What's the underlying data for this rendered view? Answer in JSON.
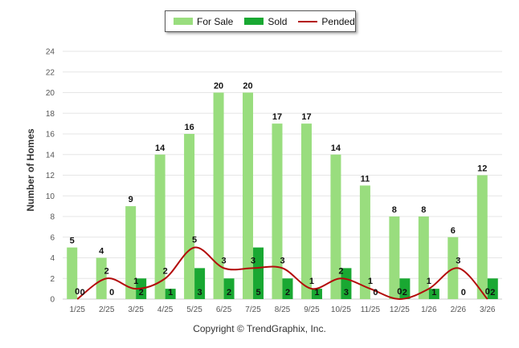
{
  "legend": {
    "for_sale_label": "For Sale",
    "sold_label": "Sold",
    "pended_label": "Pended"
  },
  "copyright": "Copyright © TrendGraphix, Inc.",
  "colors": {
    "for_sale": "#99dd7e",
    "sold": "#19a832",
    "pended": "#b30b0b",
    "grid": "#e6e6e6",
    "axis_text": "#555555"
  },
  "chart_data": {
    "type": "bar",
    "title": "",
    "xlabel": "",
    "ylabel": "Number of Homes",
    "ylim": [
      0,
      24
    ],
    "yticks": [
      0,
      2,
      4,
      6,
      8,
      10,
      12,
      14,
      16,
      18,
      20,
      22,
      24
    ],
    "grid": true,
    "legend_position": "top-center",
    "categories": [
      "1/25",
      "2/25",
      "3/25",
      "4/25",
      "5/25",
      "6/25",
      "7/25",
      "8/25",
      "9/25",
      "10/25",
      "11/25",
      "12/25",
      "1/26",
      "2/26",
      "3/26"
    ],
    "series": [
      {
        "name": "For Sale",
        "type": "bar",
        "values": [
          5,
          4,
          9,
          14,
          16,
          20,
          20,
          17,
          17,
          14,
          11,
          8,
          8,
          6,
          12
        ]
      },
      {
        "name": "Sold",
        "type": "bar",
        "values": [
          0,
          0,
          2,
          1,
          3,
          2,
          5,
          2,
          1,
          3,
          0,
          2,
          1,
          0,
          2
        ]
      },
      {
        "name": "Pended",
        "type": "line",
        "values": [
          0,
          2,
          1,
          2,
          5,
          3,
          3,
          3,
          1,
          2,
          1,
          0,
          1,
          3,
          0
        ]
      }
    ]
  }
}
